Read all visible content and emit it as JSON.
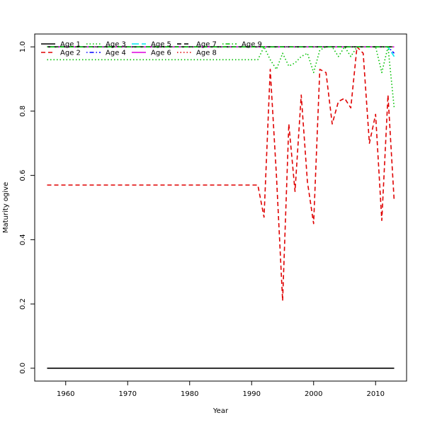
{
  "chart_data": {
    "type": "line",
    "title": "",
    "xlabel": "Year",
    "ylabel": "Maturity ogive",
    "xlim": [
      1955,
      2015
    ],
    "ylim": [
      -0.04,
      1.04
    ],
    "xticks": [
      1960,
      1970,
      1980,
      1990,
      2000,
      2010
    ],
    "yticks": [
      0.0,
      0.2,
      0.4,
      0.6,
      0.8,
      1.0
    ],
    "grid": false,
    "legend_position": "top-left",
    "series": [
      {
        "name": "Age 1",
        "color": "#000000",
        "dash": "solid",
        "points": [
          [
            1957,
            0.0
          ],
          [
            2013,
            0.0
          ]
        ]
      },
      {
        "name": "Age 2",
        "color": "#df0000",
        "dash": "dashed",
        "points": [
          [
            1957,
            0.57
          ],
          [
            1991,
            0.57
          ],
          [
            1992,
            0.47
          ],
          [
            1993,
            0.93
          ],
          [
            1994,
            0.6
          ],
          [
            1995,
            0.21
          ],
          [
            1996,
            0.76
          ],
          [
            1997,
            0.55
          ],
          [
            1998,
            0.85
          ],
          [
            1999,
            0.58
          ],
          [
            2000,
            0.45
          ],
          [
            2001,
            0.93
          ],
          [
            2002,
            0.92
          ],
          [
            2003,
            0.76
          ],
          [
            2004,
            0.83
          ],
          [
            2005,
            0.84
          ],
          [
            2006,
            0.81
          ],
          [
            2007,
            1.0
          ],
          [
            2008,
            0.98
          ],
          [
            2009,
            0.7
          ],
          [
            2010,
            0.79
          ],
          [
            2011,
            0.46
          ],
          [
            2012,
            0.85
          ],
          [
            2013,
            0.52
          ]
        ]
      },
      {
        "name": "Age 3",
        "color": "#00c000",
        "dash": "dotted",
        "points": [
          [
            1957,
            0.96
          ],
          [
            1991,
            0.96
          ],
          [
            1992,
            1.0
          ],
          [
            1993,
            0.96
          ],
          [
            1994,
            0.93
          ],
          [
            1995,
            0.98
          ],
          [
            1996,
            0.94
          ],
          [
            1997,
            0.95
          ],
          [
            1998,
            0.97
          ],
          [
            1999,
            0.98
          ],
          [
            2000,
            0.92
          ],
          [
            2001,
            0.99
          ],
          [
            2002,
            1.0
          ],
          [
            2003,
            1.0
          ],
          [
            2004,
            0.97
          ],
          [
            2005,
            1.0
          ],
          [
            2006,
            0.97
          ],
          [
            2007,
            1.0
          ],
          [
            2008,
            1.0
          ],
          [
            2009,
            1.0
          ],
          [
            2010,
            1.0
          ],
          [
            2011,
            0.92
          ],
          [
            2012,
            1.0
          ],
          [
            2013,
            0.81
          ]
        ]
      },
      {
        "name": "Age 4",
        "color": "#0000ff",
        "dash": "dotdash",
        "points": [
          [
            1957,
            1.0
          ],
          [
            2011,
            1.0
          ],
          [
            2012,
            1.0
          ],
          [
            2013,
            0.98
          ]
        ]
      },
      {
        "name": "Age 5",
        "color": "#00e5ee",
        "dash": "longdash",
        "points": [
          [
            1957,
            1.0
          ],
          [
            2011,
            1.0
          ],
          [
            2012,
            1.0
          ],
          [
            2013,
            0.97
          ]
        ]
      },
      {
        "name": "Age 6",
        "color": "#dd00dd",
        "dash": "solid",
        "points": [
          [
            1957,
            1.0
          ],
          [
            2013,
            1.0
          ]
        ]
      },
      {
        "name": "Age 7",
        "color": "#000000",
        "dash": "dashed",
        "points": [
          [
            1957,
            1.0
          ],
          [
            2013,
            1.0
          ]
        ]
      },
      {
        "name": "Age 8",
        "color": "#df0000",
        "dash": "dotted",
        "points": [
          [
            1957,
            1.0
          ],
          [
            2013,
            1.0
          ]
        ]
      },
      {
        "name": "Age 9",
        "color": "#00c000",
        "dash": "dotdash",
        "points": [
          [
            1957,
            1.0
          ],
          [
            2013,
            1.0
          ]
        ]
      }
    ]
  }
}
